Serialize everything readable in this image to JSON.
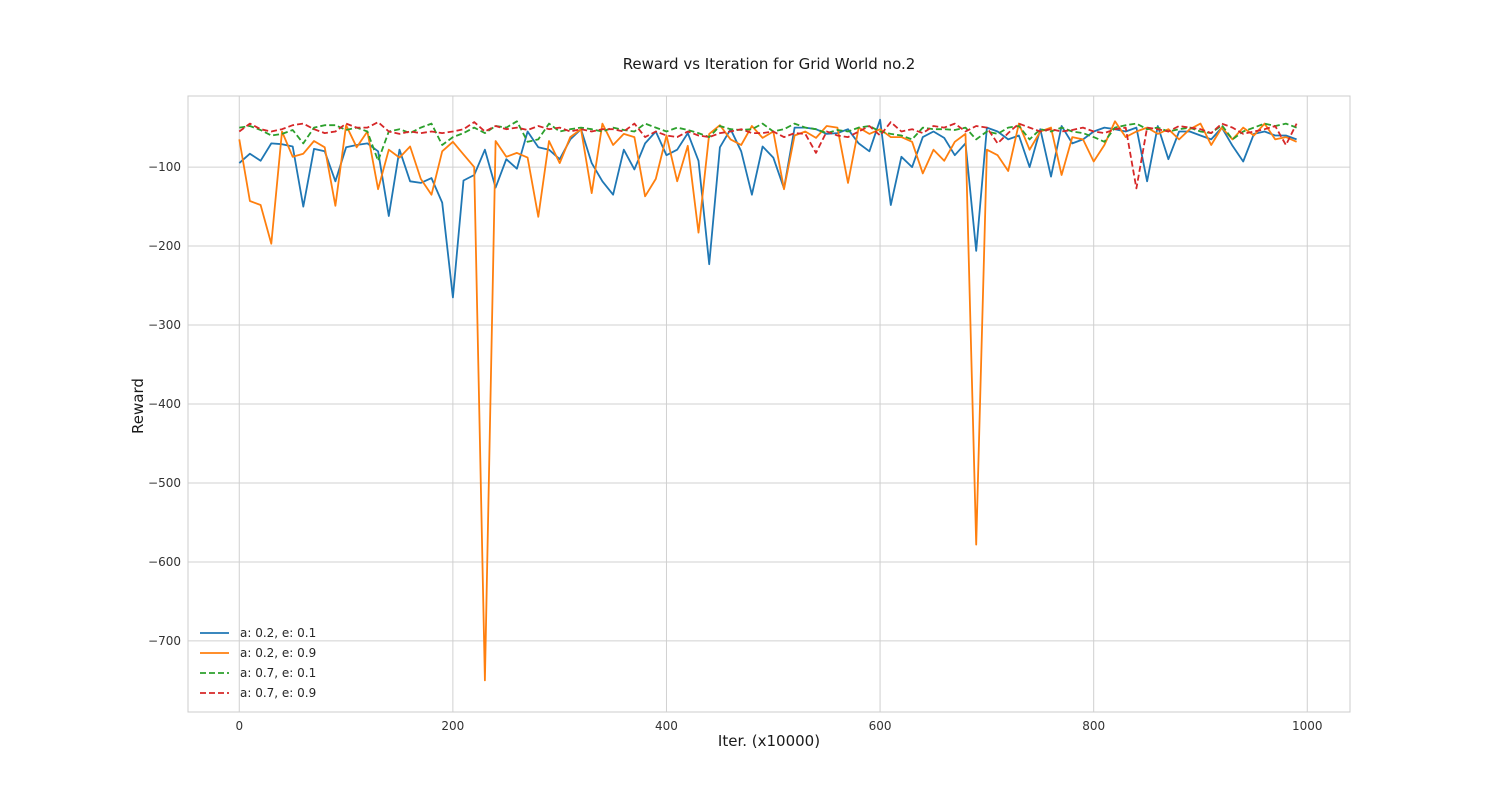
{
  "chart_data": {
    "type": "line",
    "title": "Reward vs Iteration for Grid World no.2",
    "xlabel": "Iter. (x10000)",
    "ylabel": "Reward",
    "xlim": [
      -48,
      1040
    ],
    "ylim": [
      -790,
      -10
    ],
    "xticks": [
      0,
      200,
      400,
      600,
      800,
      1000
    ],
    "yticks": [
      -100,
      -200,
      -300,
      -400,
      -500,
      -600,
      -700
    ],
    "xtick_labels": [
      "0",
      "200",
      "400",
      "600",
      "800",
      "1000"
    ],
    "ytick_labels": [
      "−100",
      "−200",
      "−300",
      "−400",
      "−500",
      "−600",
      "−700"
    ],
    "grid": true,
    "legend_position": "lower-left",
    "x": [
      0,
      10,
      20,
      30,
      40,
      50,
      60,
      70,
      80,
      90,
      100,
      110,
      120,
      130,
      140,
      150,
      160,
      170,
      180,
      190,
      200,
      210,
      220,
      230,
      240,
      250,
      260,
      270,
      280,
      290,
      300,
      310,
      320,
      330,
      340,
      350,
      360,
      370,
      380,
      390,
      400,
      410,
      420,
      430,
      440,
      450,
      460,
      470,
      480,
      490,
      500,
      510,
      520,
      530,
      540,
      550,
      560,
      570,
      580,
      590,
      600,
      610,
      620,
      630,
      640,
      650,
      660,
      670,
      680,
      690,
      700,
      710,
      720,
      730,
      740,
      750,
      760,
      770,
      780,
      790,
      800,
      810,
      820,
      830,
      840,
      850,
      860,
      870,
      880,
      890,
      900,
      910,
      920,
      930,
      940,
      950,
      960,
      970,
      980,
      990
    ],
    "series": [
      {
        "name": "a: 0.2, e: 0.1",
        "color": "#1f77b4",
        "dashed": false,
        "values": [
          -95,
          -83,
          -92,
          -70,
          -71,
          -74,
          -150,
          -77,
          -80,
          -118,
          -75,
          -72,
          -70,
          -80,
          -162,
          -78,
          -118,
          -120,
          -114,
          -145,
          -265,
          -117,
          -110,
          -78,
          -126,
          -90,
          -102,
          -55,
          -75,
          -78,
          -90,
          -65,
          -52,
          -95,
          -118,
          -135,
          -78,
          -103,
          -70,
          -55,
          -85,
          -78,
          -57,
          -92,
          -223,
          -75,
          -52,
          -80,
          -135,
          -74,
          -88,
          -127,
          -50,
          -50,
          -52,
          -58,
          -57,
          -52,
          -70,
          -80,
          -40,
          -148,
          -87,
          -100,
          -62,
          -55,
          -63,
          -85,
          -70,
          -206,
          -50,
          -55,
          -65,
          -60,
          -100,
          -52,
          -112,
          -48,
          -70,
          -65,
          -55,
          -50,
          -52,
          -55,
          -50,
          -118,
          -48,
          -90,
          -55,
          -55,
          -60,
          -65,
          -50,
          -73,
          -93,
          -58,
          -55,
          -60,
          -60,
          -65
        ]
      },
      {
        "name": "a: 0.2, e: 0.9",
        "color": "#ff7f0e",
        "dashed": false,
        "values": [
          -65,
          -143,
          -148,
          -197,
          -55,
          -87,
          -83,
          -67,
          -75,
          -149,
          -47,
          -75,
          -55,
          -128,
          -78,
          -88,
          -74,
          -115,
          -135,
          -80,
          -68,
          -84,
          -100,
          -750,
          -67,
          -87,
          -82,
          -88,
          -163,
          -67,
          -95,
          -62,
          -52,
          -133,
          -45,
          -72,
          -58,
          -62,
          -137,
          -115,
          -60,
          -118,
          -73,
          -183,
          -58,
          -47,
          -65,
          -72,
          -48,
          -63,
          -55,
          -128,
          -60,
          -55,
          -63,
          -48,
          -50,
          -120,
          -50,
          -58,
          -52,
          -62,
          -62,
          -68,
          -108,
          -78,
          -92,
          -68,
          -58,
          -578,
          -78,
          -85,
          -105,
          -45,
          -78,
          -55,
          -50,
          -110,
          -62,
          -65,
          -93,
          -72,
          -42,
          -62,
          -55,
          -50,
          -58,
          -52,
          -65,
          -52,
          -45,
          -72,
          -50,
          -65,
          -50,
          -60,
          -45,
          -65,
          -62,
          -68
        ]
      },
      {
        "name": "a: 0.7, e: 0.1",
        "color": "#2ca02c",
        "dashed": true,
        "values": [
          -50,
          -48,
          -53,
          -60,
          -58,
          -53,
          -70,
          -50,
          -47,
          -47,
          -53,
          -50,
          -55,
          -92,
          -55,
          -52,
          -57,
          -50,
          -45,
          -72,
          -62,
          -57,
          -50,
          -57,
          -48,
          -50,
          -42,
          -68,
          -65,
          -45,
          -55,
          -52,
          -50,
          -52,
          -55,
          -50,
          -53,
          -55,
          -45,
          -50,
          -55,
          -50,
          -53,
          -57,
          -62,
          -48,
          -52,
          -53,
          -52,
          -45,
          -55,
          -52,
          -45,
          -50,
          -52,
          -57,
          -53,
          -55,
          -50,
          -48,
          -55,
          -58,
          -60,
          -65,
          -50,
          -52,
          -52,
          -53,
          -50,
          -65,
          -55,
          -58,
          -50,
          -48,
          -65,
          -52,
          -55,
          -50,
          -55,
          -57,
          -62,
          -68,
          -50,
          -47,
          -45,
          -52,
          -50,
          -55,
          -52,
          -50,
          -55,
          -57,
          -47,
          -65,
          -55,
          -50,
          -45,
          -48,
          -45,
          -50
        ]
      },
      {
        "name": "a: 0.7, e: 0.9",
        "color": "#d62728",
        "dashed": true,
        "values": [
          -55,
          -45,
          -52,
          -55,
          -52,
          -47,
          -45,
          -52,
          -57,
          -55,
          -45,
          -50,
          -50,
          -43,
          -55,
          -58,
          -55,
          -57,
          -55,
          -57,
          -55,
          -52,
          -43,
          -55,
          -48,
          -52,
          -50,
          -53,
          -48,
          -52,
          -50,
          -55,
          -52,
          -55,
          -52,
          -52,
          -55,
          -45,
          -62,
          -55,
          -60,
          -62,
          -55,
          -60,
          -62,
          -57,
          -55,
          -52,
          -57,
          -57,
          -55,
          -62,
          -57,
          -58,
          -82,
          -55,
          -60,
          -62,
          -55,
          -48,
          -60,
          -43,
          -55,
          -52,
          -57,
          -48,
          -50,
          -45,
          -55,
          -48,
          -50,
          -70,
          -57,
          -45,
          -50,
          -55,
          -52,
          -55,
          -53,
          -50,
          -55,
          -57,
          -52,
          -50,
          -127,
          -50,
          -52,
          -55,
          -48,
          -50,
          -52,
          -57,
          -45,
          -50,
          -58,
          -55,
          -52,
          -48,
          -72,
          -45
        ]
      }
    ]
  }
}
